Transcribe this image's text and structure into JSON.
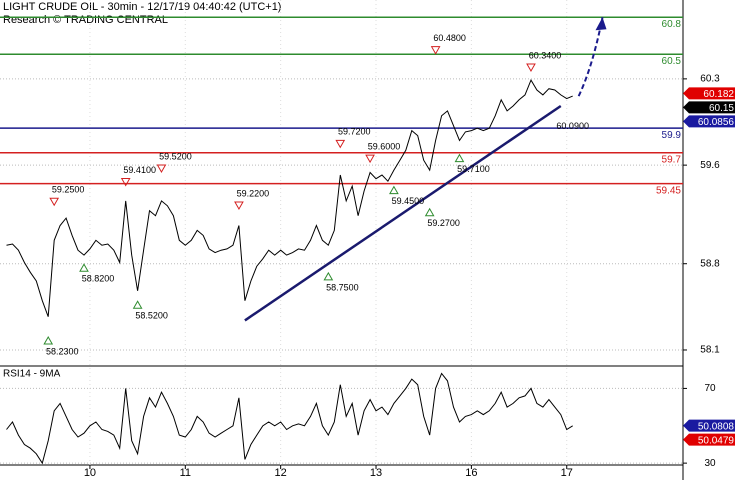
{
  "chart_data": {
    "type": "line",
    "title": "LIGHT CRUDE OIL - 30min - 12/17/19 04:40:42 (UTC+1)",
    "subtitle": "Research © TRADING CENTRAL",
    "categories": [
      null,
      null,
      null,
      null,
      null,
      null,
      null,
      null,
      null,
      null,
      null,
      null,
      null,
      null,
      "10",
      null,
      null,
      null,
      null,
      null,
      null,
      null,
      null,
      null,
      null,
      null,
      null,
      null,
      null,
      null,
      "11",
      null,
      null,
      null,
      null,
      null,
      null,
      null,
      null,
      null,
      null,
      null,
      null,
      null,
      null,
      null,
      "12",
      null,
      null,
      null,
      null,
      null,
      null,
      null,
      null,
      null,
      null,
      null,
      null,
      null,
      null,
      null,
      "13",
      null,
      null,
      null,
      null,
      null,
      null,
      null,
      null,
      null,
      null,
      null,
      null,
      null,
      null,
      null,
      "16",
      null,
      null,
      null,
      null,
      null,
      null,
      null,
      null,
      null,
      null,
      null,
      null,
      null,
      null,
      null,
      "17",
      null
    ],
    "series": [
      {
        "color": "#000000",
        "values": [
          58.95,
          58.96,
          58.91,
          58.81,
          58.73,
          58.66,
          58.5,
          58.37,
          58.99,
          59.11,
          59.17,
          59.03,
          58.91,
          58.87,
          58.92,
          58.99,
          58.95,
          58.96,
          58.91,
          58.81,
          59.31,
          58.87,
          58.58,
          58.91,
          59.23,
          59.19,
          59.31,
          59.27,
          59.19,
          58.99,
          58.95,
          58.99,
          59.07,
          59.03,
          58.92,
          58.89,
          58.91,
          58.92,
          58.95,
          59.11,
          58.5,
          58.66,
          58.78,
          58.84,
          58.91,
          58.87,
          58.91,
          58.87,
          58.89,
          58.92,
          58.91,
          58.99,
          59.11,
          58.99,
          58.95,
          59.07,
          59.52,
          59.31,
          59.43,
          59.19,
          59.39,
          59.54,
          59.49,
          59.52,
          59.47,
          59.56,
          59.64,
          59.72,
          59.88,
          59.84,
          59.64,
          59.56,
          59.8,
          60.0,
          60.04,
          59.92,
          59.8,
          59.87,
          59.88,
          59.9,
          59.88,
          59.9,
          60.0,
          60.13,
          60.04,
          60.08,
          60.13,
          60.17,
          60.29,
          60.21,
          60.17,
          60.22,
          60.21,
          60.17,
          60.14,
          60.16
        ]
      }
    ],
    "ylim": [
      57.97,
      60.94
    ],
    "yticks": [
      60.3,
      59.6,
      58.8,
      58.1
    ],
    "grid": true,
    "levels": [
      {
        "value": 60.8,
        "color": "#2e8b2e"
      },
      {
        "value": 60.5,
        "color": "#2e8b2e"
      },
      {
        "value": 59.9,
        "color": "#1a1a8c"
      },
      {
        "value": 59.7,
        "color": "#d42020"
      },
      {
        "value": 59.45,
        "color": "#d42020"
      }
    ],
    "annotations": [
      {
        "at": 8,
        "kind": "high",
        "value": 59.25,
        "label": "59.2500"
      },
      {
        "at": 7,
        "kind": "low",
        "value": 58.23,
        "label": "58.2300"
      },
      {
        "at": 13,
        "kind": "low",
        "value": 58.82,
        "label": "58.8200"
      },
      {
        "at": 20,
        "kind": "high",
        "value": 59.41,
        "label": "59.4100"
      },
      {
        "at": 22,
        "kind": "low",
        "value": 58.52,
        "label": "58.5200"
      },
      {
        "at": 26,
        "kind": "high",
        "value": 59.52,
        "label": "59.5200"
      },
      {
        "at": 39,
        "kind": "high",
        "value": 59.22,
        "label": "59.2200"
      },
      {
        "at": 54,
        "kind": "low",
        "value": 58.75,
        "label": "58.7500"
      },
      {
        "at": 56,
        "kind": "high",
        "value": 59.72,
        "label": "59.7200"
      },
      {
        "at": 61,
        "kind": "high",
        "value": 59.6,
        "label": "59.6000"
      },
      {
        "at": 65,
        "kind": "low",
        "value": 59.45,
        "label": "59.4500"
      },
      {
        "at": 72,
        "kind": "high",
        "value": 60.48,
        "label": "60.4800"
      },
      {
        "at": 71,
        "kind": "low",
        "value": 59.27,
        "label": "59.2700"
      },
      {
        "at": 76,
        "kind": "low",
        "value": 59.71,
        "label": "59.7100"
      },
      {
        "at": 88,
        "kind": "high",
        "value": 60.34,
        "label": "60.3400"
      },
      {
        "at": 95,
        "kind": "note",
        "value": 60.09,
        "label": "60.0900"
      }
    ],
    "price_tags": [
      {
        "value": 60.182,
        "color": "#e00000"
      },
      {
        "value": 60.15,
        "color": "#000000"
      },
      {
        "value": 60.0856,
        "color": "#1a1aa0"
      }
    ],
    "trendline": {
      "color": "#1a1a6e",
      "from": {
        "at": 40,
        "value": 58.34
      },
      "to": {
        "at": 93,
        "value": 60.08
      }
    },
    "forecast": {
      "color": "#1a1a8c",
      "from": {
        "at": 96,
        "value": 60.16
      },
      "to": {
        "at": 100,
        "value": 60.8
      }
    },
    "rsi": {
      "title": "RSI14 - 9MA",
      "color": "#000000",
      "values": [
        48,
        52,
        45,
        40,
        38,
        35,
        30,
        42,
        58,
        62,
        55,
        48,
        44,
        46,
        50,
        52,
        48,
        47,
        45,
        38,
        70,
        42,
        35,
        55,
        65,
        60,
        68,
        62,
        55,
        45,
        44,
        48,
        55,
        52,
        46,
        44,
        46,
        48,
        50,
        65,
        32,
        40,
        45,
        50,
        52,
        50,
        52,
        48,
        50,
        51,
        50,
        55,
        62,
        50,
        45,
        52,
        72,
        55,
        62,
        45,
        58,
        64,
        58,
        60,
        56,
        62,
        66,
        70,
        75,
        72,
        55,
        45,
        70,
        78,
        74,
        60,
        52,
        55,
        56,
        58,
        56,
        58,
        62,
        68,
        60,
        62,
        65,
        66,
        70,
        62,
        60,
        64,
        60,
        56,
        48,
        50
      ],
      "ylim": [
        29,
        82
      ],
      "yticks": [
        70,
        30
      ],
      "tags": [
        {
          "value": 50.0808,
          "color": "#1a1aa0"
        },
        {
          "value": 50.0479,
          "color": "#e00000"
        }
      ]
    }
  }
}
